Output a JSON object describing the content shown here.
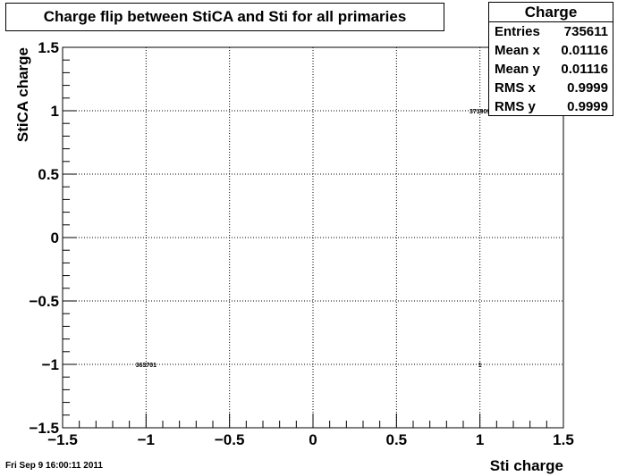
{
  "chart_data": {
    "type": "heatmap",
    "title": "Charge flip between StiCA and Sti for all primaries",
    "xlabel": "Sti charge",
    "ylabel": "StiCA charge",
    "xlim": [
      -1.5,
      1.5
    ],
    "ylim": [
      -1.5,
      1.5
    ],
    "x_ticks": [
      -1.5,
      -1,
      -0.5,
      0,
      0.5,
      1,
      1.5
    ],
    "y_ticks": [
      -1.5,
      -1,
      -0.5,
      0,
      0.5,
      1,
      1.5
    ],
    "x_tick_labels": [
      "−1.5",
      "−1",
      "−0.5",
      "0",
      "0.5",
      "1",
      "1.5"
    ],
    "y_tick_labels": [
      "−1.5",
      "−1",
      "−0.5",
      "0",
      "0.5",
      "1",
      "1.5"
    ],
    "grid": true,
    "cells": [
      {
        "x": -1,
        "y": -1,
        "value": 363701,
        "label": "363701"
      },
      {
        "x": 1,
        "y": 1,
        "value": 371909,
        "label": "371909"
      },
      {
        "x": 1,
        "y": -1,
        "value": 1,
        "label": "1"
      }
    ]
  },
  "stats": {
    "name": "Charge",
    "rows": [
      {
        "label": "Entries",
        "value": "735611"
      },
      {
        "label": "Mean x",
        "value": "0.01116"
      },
      {
        "label": "Mean y",
        "value": "0.01116"
      },
      {
        "label": "RMS x",
        "value": "0.9999"
      },
      {
        "label": "RMS y",
        "value": "0.9999"
      }
    ]
  },
  "timestamp": "Fri Sep  9 16:00:11 2011"
}
